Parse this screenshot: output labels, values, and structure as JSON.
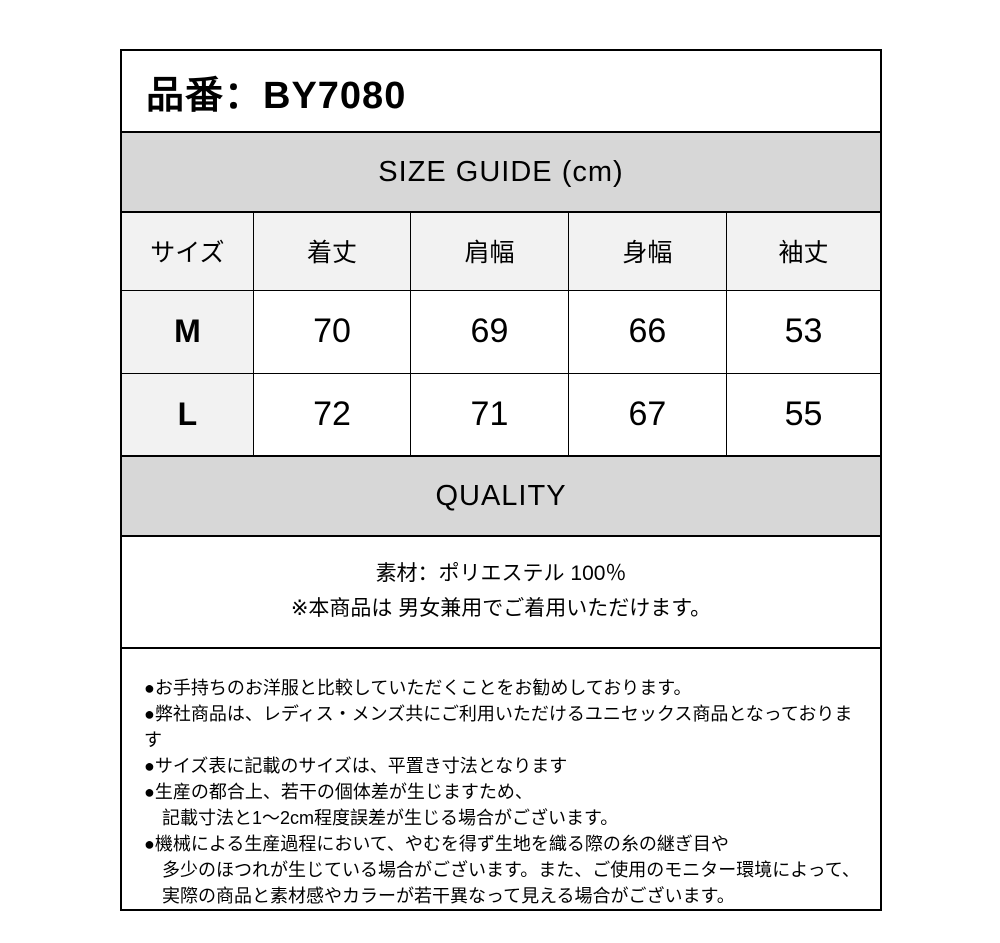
{
  "product_header": {
    "text": "品番：BY7080"
  },
  "size_guide": {
    "title": "SIZE GUIDE (cm)",
    "columns": [
      "サイズ",
      "着丈",
      "肩幅",
      "身幅",
      "袖丈"
    ],
    "rows": [
      {
        "size": "M",
        "values": [
          "70",
          "69",
          "66",
          "53"
        ]
      },
      {
        "size": "L",
        "values": [
          "72",
          "71",
          "67",
          "55"
        ]
      }
    ]
  },
  "quality": {
    "title": "QUALITY",
    "material_line": "素材：ポリエステル 100％",
    "unisex_line": "※本商品は 男女兼用でご着用いただけます。"
  },
  "notes": {
    "lines": [
      "●お手持ちのお洋服と比較していただくことをお勧めしております。",
      "●弊社商品は、レディス・メンズ共にご利用いただけるユニセックス商品となっております",
      "●サイズ表に記載のサイズは、平置き寸法となります",
      "●生産の都合上、若干の個体差が生じますため、",
      "　記載寸法と1～2cm程度誤差が生じる場合がございます。",
      "●機械による生産過程において、やむを得ず生地を織る際の糸の継ぎ目や",
      "　多少のほつれが生じている場合がございます。また、ご使用のモニター環境によって、",
      "　実際の商品と素材感やカラーが若干異なって見える場合がございます。"
    ]
  },
  "colors": {
    "band_gray": "#d7d7d7",
    "header_gray": "#f2f2f2",
    "border": "#000000",
    "text": "#000000",
    "background": "#ffffff"
  }
}
